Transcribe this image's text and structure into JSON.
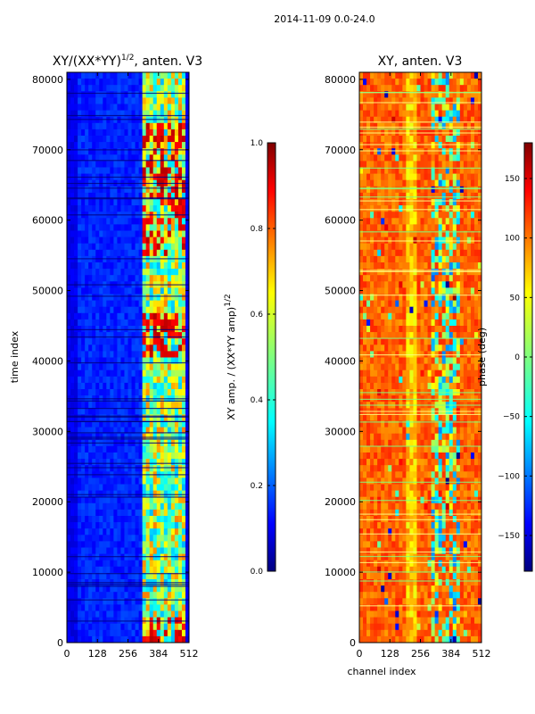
{
  "suptitle": "2014-11-09 0.0-24.0",
  "chart_data": [
    {
      "type": "heatmap",
      "title": "XY/(XX*YY)^{1/2}, anten. V3",
      "title_main": "XY/(XX*YY)",
      "title_sup": "1/2",
      "title_rest": ", anten. V3",
      "xlabel": "",
      "ylabel": "time index",
      "xlim": [
        0,
        512
      ],
      "ylim": [
        0,
        81000
      ],
      "xticks": [
        "0",
        "128",
        "256",
        "384",
        "512"
      ],
      "yticks": [
        "0",
        "10000",
        "20000",
        "30000",
        "40000",
        "50000",
        "60000",
        "70000",
        "80000"
      ],
      "colormap": "jet",
      "colorbar": {
        "label": "XY amp. / (XX*YY amp)^{1/2}",
        "label_main": "XY amp. / (XX*YY amp)",
        "label_sup": "1/2",
        "range": [
          0.0,
          1.0
        ],
        "ticks": [
          "0.0",
          "0.2",
          "0.4",
          "0.6",
          "0.8",
          "1.0"
        ]
      }
    },
    {
      "type": "heatmap",
      "title": "XY, anten. V3",
      "xlabel": "channel index",
      "ylabel": "",
      "xlim": [
        0,
        512
      ],
      "ylim": [
        0,
        81000
      ],
      "xticks": [
        "0",
        "128",
        "256",
        "384",
        "512"
      ],
      "yticks": [
        "0",
        "10000",
        "20000",
        "30000",
        "40000",
        "50000",
        "60000",
        "70000",
        "80000"
      ],
      "colormap": "jet",
      "colorbar": {
        "label": "phase (deg)",
        "range": [
          -180,
          180
        ],
        "ticks": [
          "−150",
          "−100",
          "−50",
          "0",
          "50",
          "100",
          "150"
        ]
      }
    }
  ],
  "colors": {
    "jet_dark_blue": "#00007f",
    "jet_blue": "#0000ff",
    "jet_cyan": "#00ffff",
    "jet_yellow": "#ffff00",
    "jet_red": "#ff0000",
    "jet_dark_red": "#7f0000"
  }
}
